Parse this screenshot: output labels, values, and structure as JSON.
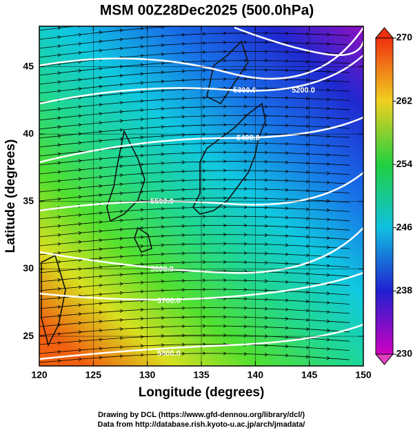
{
  "map": {
    "title": "MSM 00Z28Dec2025 (500.0hPa)",
    "xlabel": "Longitude (degrees)",
    "ylabel": "Latitude  (degrees)",
    "xlim": [
      120,
      150
    ],
    "xticks": [
      120,
      125,
      130,
      135,
      140,
      145,
      150
    ],
    "ylim": [
      22.8,
      48
    ],
    "yticks": [
      25,
      30,
      35,
      40,
      45
    ]
  },
  "colorbar": {
    "lim": [
      230,
      270
    ],
    "ticks": [
      230,
      238,
      246,
      254,
      262,
      270
    ]
  },
  "contour_labels": [
    "5200.0",
    "5300.0",
    "5400.0",
    "5500.0",
    "5600.0",
    "5700.0",
    "5800.0"
  ],
  "footer": [
    "Drawing by DCL (https://www.gfd-dennou.org/library/dcl/)",
    "Data from http://database.rish.kyoto-u.ac.jp/arch/jmadata/"
  ]
}
